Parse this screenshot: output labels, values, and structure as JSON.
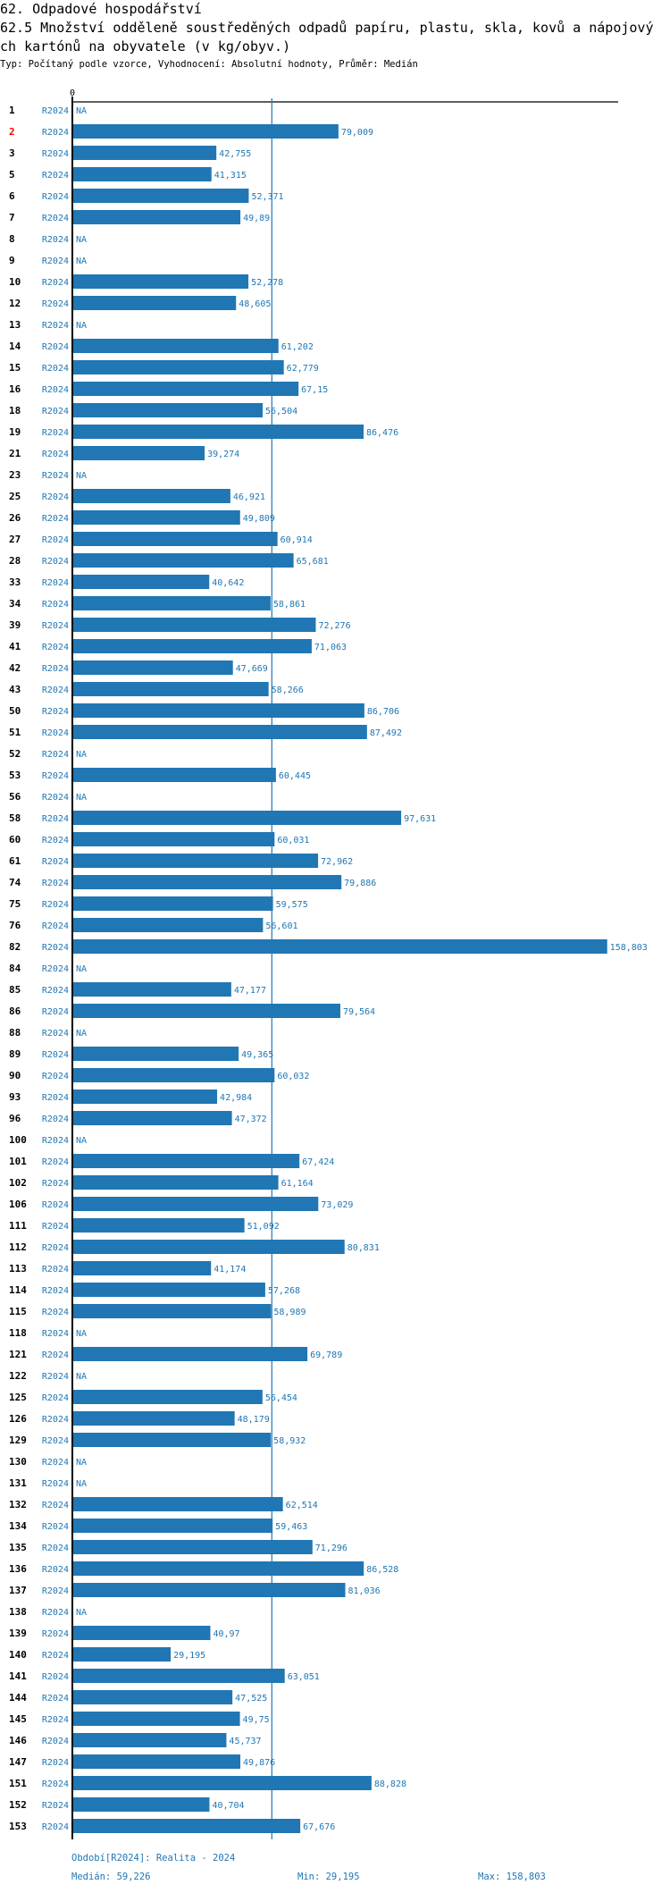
{
  "header": {
    "title": "62. Odpadové hospodářství",
    "subtitle_line1": "62.5 Množství odděleně soustředěných odpadů papíru, plastu, skla, kovů a nápojový",
    "subtitle_line2": "ch kartónů na obyvatele (v kg/obyv.)",
    "meta": "Typ: Počítaný podle vzorce, Vyhodnocení: Absolutní hodnoty, Průměr: Medián"
  },
  "footer": {
    "period": "Období[R2024]: Realita - 2024",
    "median": "Medián: 59,226",
    "min": "Min: 29,195",
    "max": "Max: 158,803"
  },
  "chart_data": {
    "type": "bar",
    "orientation": "horizontal",
    "period_label": "R2024",
    "x_tick_labels": [
      "0"
    ],
    "xlim": [
      0,
      158.803
    ],
    "median": 59.226,
    "bar_color": "#2077b4",
    "highlight_color": "#ff0000",
    "highlighted": [
      "2"
    ],
    "rows": [
      {
        "id": "1",
        "value": null,
        "label": "NA"
      },
      {
        "id": "2",
        "value": 79.009,
        "label": "79,009"
      },
      {
        "id": "3",
        "value": 42.755,
        "label": "42,755"
      },
      {
        "id": "5",
        "value": 41.315,
        "label": "41,315"
      },
      {
        "id": "6",
        "value": 52.371,
        "label": "52,371"
      },
      {
        "id": "7",
        "value": 49.89,
        "label": "49,89"
      },
      {
        "id": "8",
        "value": null,
        "label": "NA"
      },
      {
        "id": "9",
        "value": null,
        "label": "NA"
      },
      {
        "id": "10",
        "value": 52.278,
        "label": "52,278"
      },
      {
        "id": "12",
        "value": 48.605,
        "label": "48,605"
      },
      {
        "id": "13",
        "value": null,
        "label": "NA"
      },
      {
        "id": "14",
        "value": 61.202,
        "label": "61,202"
      },
      {
        "id": "15",
        "value": 62.779,
        "label": "62,779"
      },
      {
        "id": "16",
        "value": 67.15,
        "label": "67,15"
      },
      {
        "id": "18",
        "value": 56.504,
        "label": "56,504"
      },
      {
        "id": "19",
        "value": 86.476,
        "label": "86,476"
      },
      {
        "id": "21",
        "value": 39.274,
        "label": "39,274"
      },
      {
        "id": "23",
        "value": null,
        "label": "NA"
      },
      {
        "id": "25",
        "value": 46.921,
        "label": "46,921"
      },
      {
        "id": "26",
        "value": 49.809,
        "label": "49,809"
      },
      {
        "id": "27",
        "value": 60.914,
        "label": "60,914"
      },
      {
        "id": "28",
        "value": 65.681,
        "label": "65,681"
      },
      {
        "id": "33",
        "value": 40.642,
        "label": "40,642"
      },
      {
        "id": "34",
        "value": 58.861,
        "label": "58,861"
      },
      {
        "id": "39",
        "value": 72.276,
        "label": "72,276"
      },
      {
        "id": "41",
        "value": 71.063,
        "label": "71,063"
      },
      {
        "id": "42",
        "value": 47.669,
        "label": "47,669"
      },
      {
        "id": "43",
        "value": 58.266,
        "label": "58,266"
      },
      {
        "id": "50",
        "value": 86.706,
        "label": "86,706"
      },
      {
        "id": "51",
        "value": 87.492,
        "label": "87,492"
      },
      {
        "id": "52",
        "value": null,
        "label": "NA"
      },
      {
        "id": "53",
        "value": 60.445,
        "label": "60,445"
      },
      {
        "id": "56",
        "value": null,
        "label": "NA"
      },
      {
        "id": "58",
        "value": 97.631,
        "label": "97,631"
      },
      {
        "id": "60",
        "value": 60.031,
        "label": "60,031"
      },
      {
        "id": "61",
        "value": 72.962,
        "label": "72,962"
      },
      {
        "id": "74",
        "value": 79.886,
        "label": "79,886"
      },
      {
        "id": "75",
        "value": 59.575,
        "label": "59,575"
      },
      {
        "id": "76",
        "value": 56.601,
        "label": "56,601"
      },
      {
        "id": "82",
        "value": 158.803,
        "label": "158,803"
      },
      {
        "id": "84",
        "value": null,
        "label": "NA"
      },
      {
        "id": "85",
        "value": 47.177,
        "label": "47,177"
      },
      {
        "id": "86",
        "value": 79.564,
        "label": "79,564"
      },
      {
        "id": "88",
        "value": null,
        "label": "NA"
      },
      {
        "id": "89",
        "value": 49.365,
        "label": "49,365"
      },
      {
        "id": "90",
        "value": 60.032,
        "label": "60,032"
      },
      {
        "id": "93",
        "value": 42.984,
        "label": "42,984"
      },
      {
        "id": "96",
        "value": 47.372,
        "label": "47,372"
      },
      {
        "id": "100",
        "value": null,
        "label": "NA"
      },
      {
        "id": "101",
        "value": 67.424,
        "label": "67,424"
      },
      {
        "id": "102",
        "value": 61.164,
        "label": "61,164"
      },
      {
        "id": "106",
        "value": 73.029,
        "label": "73,029"
      },
      {
        "id": "111",
        "value": 51.092,
        "label": "51,092"
      },
      {
        "id": "112",
        "value": 80.831,
        "label": "80,831"
      },
      {
        "id": "113",
        "value": 41.174,
        "label": "41,174"
      },
      {
        "id": "114",
        "value": 57.268,
        "label": "57,268"
      },
      {
        "id": "115",
        "value": 58.989,
        "label": "58,989"
      },
      {
        "id": "118",
        "value": null,
        "label": "NA"
      },
      {
        "id": "121",
        "value": 69.789,
        "label": "69,789"
      },
      {
        "id": "122",
        "value": null,
        "label": "NA"
      },
      {
        "id": "125",
        "value": 56.454,
        "label": "56,454"
      },
      {
        "id": "126",
        "value": 48.179,
        "label": "48,179"
      },
      {
        "id": "129",
        "value": 58.932,
        "label": "58,932"
      },
      {
        "id": "130",
        "value": null,
        "label": "NA"
      },
      {
        "id": "131",
        "value": null,
        "label": "NA"
      },
      {
        "id": "132",
        "value": 62.514,
        "label": "62,514"
      },
      {
        "id": "134",
        "value": 59.463,
        "label": "59,463"
      },
      {
        "id": "135",
        "value": 71.296,
        "label": "71,296"
      },
      {
        "id": "136",
        "value": 86.528,
        "label": "86,528"
      },
      {
        "id": "137",
        "value": 81.036,
        "label": "81,036"
      },
      {
        "id": "138",
        "value": null,
        "label": "NA"
      },
      {
        "id": "139",
        "value": 40.97,
        "label": "40,97"
      },
      {
        "id": "140",
        "value": 29.195,
        "label": "29,195"
      },
      {
        "id": "141",
        "value": 63.051,
        "label": "63,051"
      },
      {
        "id": "144",
        "value": 47.525,
        "label": "47,525"
      },
      {
        "id": "145",
        "value": 49.75,
        "label": "49,75"
      },
      {
        "id": "146",
        "value": 45.737,
        "label": "45,737"
      },
      {
        "id": "147",
        "value": 49.876,
        "label": "49,876"
      },
      {
        "id": "151",
        "value": 88.828,
        "label": "88,828"
      },
      {
        "id": "152",
        "value": 40.704,
        "label": "40,704"
      },
      {
        "id": "153",
        "value": 67.676,
        "label": "67,676"
      }
    ]
  }
}
